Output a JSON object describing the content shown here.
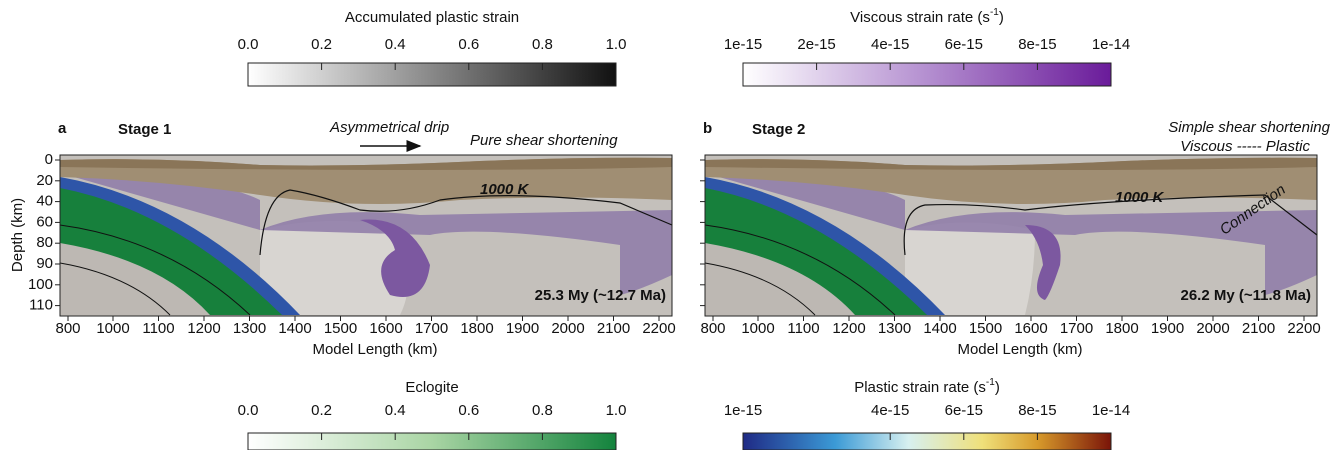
{
  "colorbars": [
    {
      "title": {
        "text": "Accumulated plastic strain"
      },
      "ticks": [
        "0.0",
        "0.2",
        "0.4",
        "0.6",
        "0.8",
        "1.0"
      ]
    },
    {
      "title": {
        "text": "Viscous strain rate (s",
        "sup": "-1",
        "end": ")"
      },
      "ticks": [
        "1e-15",
        "2e-15",
        "4e-15",
        "6e-15",
        "8e-15",
        "1e-14"
      ]
    },
    {
      "title": {
        "text": "Eclogite"
      },
      "ticks": [
        "0.0",
        "0.2",
        "0.4",
        "0.6",
        "0.8",
        "1.0"
      ]
    },
    {
      "title": {
        "text": "Plastic strain rate (s",
        "sup": "-1",
        "end": ")"
      },
      "ticks": [
        "1e-15",
        "4e-15",
        "6e-15",
        "8e-15",
        "1e-14"
      ]
    }
  ],
  "axes": {
    "y_label": "Depth (km)",
    "x_label": "Model Length (km)",
    "y_ticks": [
      "0",
      "20",
      "40",
      "60",
      "80",
      "90",
      "100",
      "110"
    ],
    "x_ticks": [
      "800",
      "1000",
      "1100",
      "1200",
      "1300",
      "1400",
      "1500",
      "1600",
      "1700",
      "1800",
      "1900",
      "2000",
      "2100",
      "2200"
    ]
  },
  "panels": [
    {
      "label": "a",
      "stage": "Stage 1",
      "annotations": [
        "Asymmetrical drip",
        "Pure shear shortening"
      ],
      "isotherm": "1000 K",
      "time": "25.3 My (~12.7 Ma)"
    },
    {
      "label": "b",
      "stage": "Stage 2",
      "annotations": [
        "Simple shear shortening",
        "Viscous ----- Plastic",
        "Connection"
      ],
      "isotherm": "1000 K",
      "time": "26.2 My (~11.8 Ma)"
    }
  ]
}
